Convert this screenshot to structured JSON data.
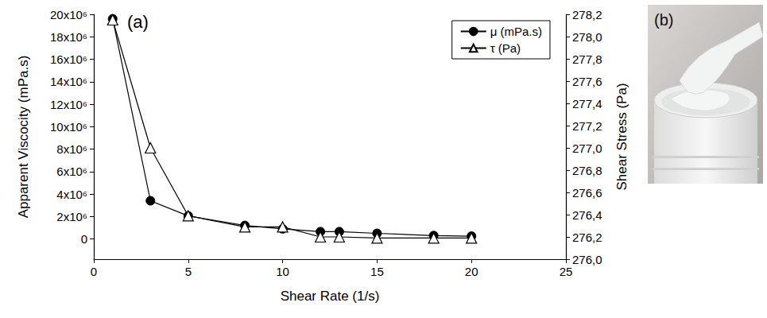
{
  "chart_data": {
    "type": "line",
    "panel_label": "(a)",
    "x_label": "Shear Rate (1/s)",
    "y_label": "Apparent Viscocity (mPa.s)",
    "y2_label": "Shear Stress (Pa)",
    "x": [
      1,
      3,
      5,
      8,
      10,
      12,
      13,
      15,
      18,
      20
    ],
    "series": [
      {
        "name": "μ (mPa.s)",
        "color": "#000000",
        "marker": "circle",
        "line_style": "solid",
        "axis": "y",
        "values": [
          19600000,
          3400000,
          2050000,
          1200000,
          900000,
          650000,
          650000,
          500000,
          300000,
          250000
        ]
      },
      {
        "name": "τ (Pa)",
        "color": "#000000",
        "marker": "triangle",
        "line_style": "solid",
        "axis": "y2",
        "values": [
          278.15,
          277.0,
          276.39,
          276.29,
          276.29,
          276.2,
          276.2,
          276.19,
          276.19,
          276.19
        ]
      }
    ],
    "xlim": [
      0,
      25
    ],
    "xticks": [
      0,
      5,
      10,
      15,
      20,
      25
    ],
    "ylim": [
      -1800000,
      20000000
    ],
    "yticks": [
      0,
      {
        "value": 2000000,
        "label": "2x10⁶"
      },
      {
        "value": 4000000,
        "label": "4x10⁶"
      },
      {
        "value": 6000000,
        "label": "6x10⁶"
      },
      {
        "value": 8000000,
        "label": "8x10⁶"
      },
      {
        "value": 10000000,
        "label": "10x10⁶"
      },
      {
        "value": 12000000,
        "label": "12x10⁶"
      },
      {
        "value": 14000000,
        "label": "14x10⁶"
      },
      {
        "value": 16000000,
        "label": "16x10⁶"
      },
      {
        "value": 18000000,
        "label": "18x10⁶"
      },
      {
        "value": 20000000,
        "label": "20x10⁶"
      }
    ],
    "y2lim": [
      276.0,
      278.2
    ],
    "y2ticks": [
      {
        "value": 276.0,
        "label": "276,0"
      },
      {
        "value": 276.2,
        "label": "276,2"
      },
      {
        "value": 276.4,
        "label": "276,4"
      },
      {
        "value": 276.6,
        "label": "276,6"
      },
      {
        "value": 276.8,
        "label": "276,8"
      },
      {
        "value": 277.0,
        "label": "277,0"
      },
      {
        "value": 277.2,
        "label": "277,2"
      },
      {
        "value": 277.4,
        "label": "277,4"
      },
      {
        "value": 277.6,
        "label": "277,6"
      },
      {
        "value": 277.8,
        "label": "277,8"
      },
      {
        "value": 278.0,
        "label": "278,0"
      },
      {
        "value": 278.2,
        "label": "278,2"
      }
    ],
    "grid": false,
    "legend": "upper right"
  },
  "photo": {
    "panel_label": "(b)"
  }
}
